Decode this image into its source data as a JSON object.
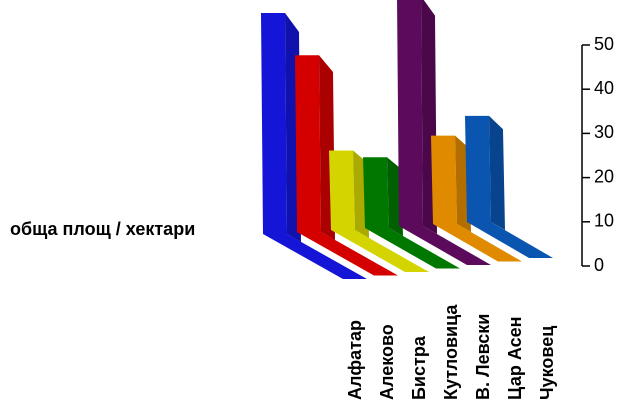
{
  "chart_data": {
    "type": "bar3d",
    "y_label": "обща площ / хектари",
    "categories": [
      "Алфатар",
      "Алеково",
      "Бистра",
      "Кутловица",
      "В. Левски",
      "Цар Асен",
      "Чуковец"
    ],
    "values": [
      50,
      40,
      18,
      16,
      52,
      20,
      24
    ],
    "colors": [
      "#1515d8",
      "#d40000",
      "#d4d400",
      "#007800",
      "#5c0a5c",
      "#e08a00",
      "#0a55b0"
    ],
    "ylim": [
      0,
      50
    ],
    "yticks": [
      0,
      10,
      20,
      30,
      40,
      50
    ]
  }
}
